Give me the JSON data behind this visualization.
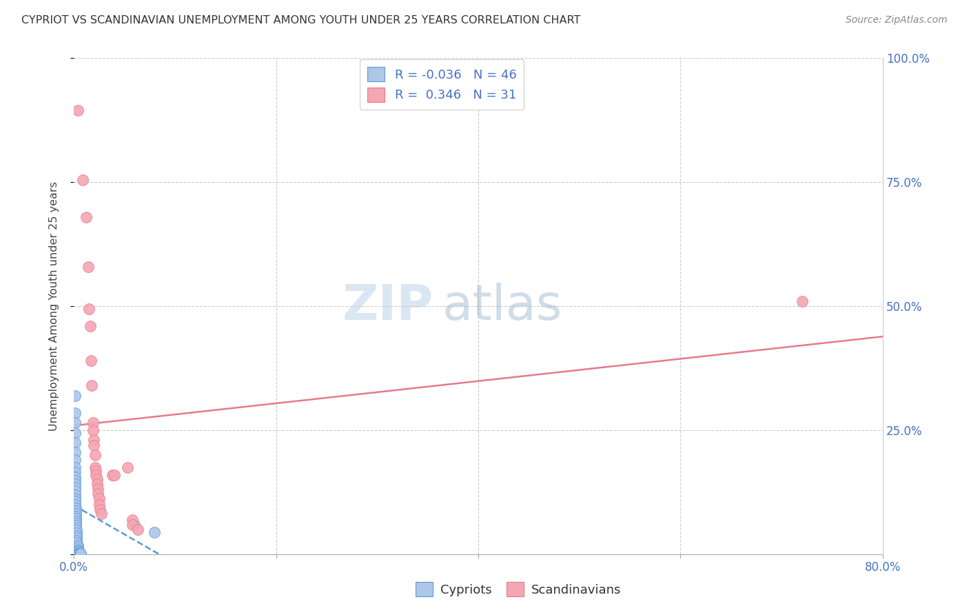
{
  "title": "CYPRIOT VS SCANDINAVIAN UNEMPLOYMENT AMONG YOUTH UNDER 25 YEARS CORRELATION CHART",
  "source": "Source: ZipAtlas.com",
  "ylabel": "Unemployment Among Youth under 25 years",
  "xlim": [
    0.0,
    0.8
  ],
  "ylim": [
    0.0,
    1.0
  ],
  "cypriot_color": "#aec6e8",
  "scandinavian_color": "#f4a7b3",
  "cypriot_R": -0.036,
  "cypriot_N": 46,
  "scandinavian_R": 0.346,
  "scandinavian_N": 31,
  "cypriot_trend_color": "#5a9ad5",
  "scandinavian_trend_color": "#e8788a",
  "watermark_zip": "ZIP",
  "watermark_atlas": "atlas",
  "background_color": "#ffffff",
  "cypriot_points": [
    [
      0.001,
      0.32
    ],
    [
      0.001,
      0.285
    ],
    [
      0.001,
      0.265
    ],
    [
      0.001,
      0.245
    ],
    [
      0.001,
      0.225
    ],
    [
      0.001,
      0.205
    ],
    [
      0.001,
      0.19
    ],
    [
      0.001,
      0.175
    ],
    [
      0.001,
      0.165
    ],
    [
      0.001,
      0.155
    ],
    [
      0.001,
      0.148
    ],
    [
      0.001,
      0.142
    ],
    [
      0.001,
      0.135
    ],
    [
      0.001,
      0.128
    ],
    [
      0.001,
      0.12
    ],
    [
      0.001,
      0.113
    ],
    [
      0.001,
      0.107
    ],
    [
      0.001,
      0.1
    ],
    [
      0.002,
      0.093
    ],
    [
      0.002,
      0.087
    ],
    [
      0.002,
      0.082
    ],
    [
      0.002,
      0.077
    ],
    [
      0.002,
      0.072
    ],
    [
      0.002,
      0.067
    ],
    [
      0.002,
      0.062
    ],
    [
      0.002,
      0.058
    ],
    [
      0.002,
      0.053
    ],
    [
      0.003,
      0.048
    ],
    [
      0.003,
      0.043
    ],
    [
      0.003,
      0.038
    ],
    [
      0.003,
      0.033
    ],
    [
      0.003,
      0.028
    ],
    [
      0.003,
      0.023
    ],
    [
      0.004,
      0.018
    ],
    [
      0.004,
      0.014
    ],
    [
      0.004,
      0.01
    ],
    [
      0.004,
      0.007
    ],
    [
      0.005,
      0.005
    ],
    [
      0.005,
      0.003
    ],
    [
      0.005,
      0.002
    ],
    [
      0.006,
      0.001
    ],
    [
      0.006,
      0.001
    ],
    [
      0.007,
      0.001
    ],
    [
      0.007,
      0.001
    ],
    [
      0.06,
      0.06
    ],
    [
      0.08,
      0.045
    ]
  ],
  "scandinavian_points": [
    [
      0.004,
      0.895
    ],
    [
      0.009,
      0.755
    ],
    [
      0.012,
      0.68
    ],
    [
      0.014,
      0.58
    ],
    [
      0.015,
      0.495
    ],
    [
      0.016,
      0.46
    ],
    [
      0.017,
      0.39
    ],
    [
      0.018,
      0.34
    ],
    [
      0.019,
      0.265
    ],
    [
      0.019,
      0.25
    ],
    [
      0.02,
      0.23
    ],
    [
      0.02,
      0.22
    ],
    [
      0.021,
      0.2
    ],
    [
      0.021,
      0.175
    ],
    [
      0.022,
      0.168
    ],
    [
      0.022,
      0.16
    ],
    [
      0.023,
      0.152
    ],
    [
      0.023,
      0.142
    ],
    [
      0.024,
      0.132
    ],
    [
      0.024,
      0.122
    ],
    [
      0.025,
      0.112
    ],
    [
      0.025,
      0.1
    ],
    [
      0.026,
      0.09
    ],
    [
      0.027,
      0.082
    ],
    [
      0.038,
      0.16
    ],
    [
      0.04,
      0.16
    ],
    [
      0.053,
      0.175
    ],
    [
      0.058,
      0.07
    ],
    [
      0.058,
      0.06
    ],
    [
      0.063,
      0.05
    ],
    [
      0.72,
      0.51
    ]
  ]
}
